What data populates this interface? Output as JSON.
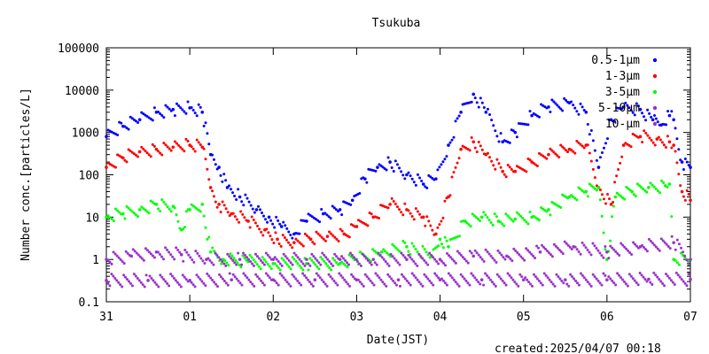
{
  "chart_data": {
    "type": "scatter",
    "title": "Tsukuba",
    "xlabel": "Date(JST)",
    "ylabel": "Number conc.[particles/L]",
    "footer": "created:2025/04/07 00:18",
    "y_scale": "log",
    "ylim": [
      0.1,
      100000
    ],
    "xlim": [
      0,
      7
    ],
    "x_tick_labels": [
      "31",
      "01",
      "02",
      "03",
      "04",
      "05",
      "06",
      "07"
    ],
    "y_tick_labels": [
      "0.1",
      "1",
      "10",
      "100",
      "1000",
      "10000",
      "100000"
    ],
    "legend_position": "top-right",
    "grid": false,
    "series": [
      {
        "name": "0.5-1μm",
        "color": "#0000ff",
        "x": [
          0.0,
          0.2,
          0.4,
          0.6,
          0.8,
          1.0,
          1.15,
          1.25,
          1.35,
          1.45,
          1.6,
          1.8,
          1.95,
          2.1,
          2.25,
          2.4,
          2.6,
          2.8,
          2.95,
          3.1,
          3.25,
          3.4,
          3.6,
          3.8,
          3.95,
          4.1,
          4.25,
          4.4,
          4.55,
          4.75,
          4.9,
          5.1,
          5.3,
          5.55,
          5.75,
          5.9,
          6.05,
          6.2,
          6.4,
          6.55,
          6.65,
          6.75,
          6.8,
          6.9,
          7.0
        ],
        "y": [
          800,
          1400,
          2000,
          3000,
          3500,
          3800,
          3000,
          300,
          150,
          50,
          30,
          15,
          10,
          6,
          4,
          8,
          12,
          15,
          25,
          80,
          150,
          200,
          100,
          60,
          80,
          500,
          3000,
          8000,
          3000,
          600,
          1000,
          2500,
          4000,
          5000,
          3000,
          150,
          2000,
          4000,
          3500,
          2000,
          1500,
          2500,
          2000,
          200,
          150
        ]
      },
      {
        "name": "1-3μm",
        "color": "#ff0000",
        "x": [
          0.0,
          0.2,
          0.4,
          0.6,
          0.8,
          1.0,
          1.15,
          1.25,
          1.35,
          1.5,
          1.7,
          1.9,
          2.05,
          2.25,
          2.45,
          2.65,
          2.85,
          3.0,
          3.2,
          3.4,
          3.6,
          3.8,
          3.95,
          4.1,
          4.25,
          4.4,
          4.55,
          4.75,
          4.9,
          5.1,
          5.3,
          5.55,
          5.75,
          5.9,
          6.05,
          6.2,
          6.4,
          6.6,
          6.75,
          6.8,
          6.9,
          7.0
        ],
        "y": [
          150,
          250,
          350,
          400,
          450,
          500,
          450,
          50,
          20,
          12,
          8,
          5,
          3,
          2.5,
          3,
          3.5,
          4,
          6,
          10,
          20,
          15,
          10,
          4,
          30,
          400,
          600,
          300,
          120,
          120,
          200,
          300,
          400,
          500,
          50,
          20,
          500,
          800,
          700,
          600,
          500,
          40,
          25
        ]
      },
      {
        "name": "3-5μm",
        "color": "#00ff00",
        "x": [
          0.0,
          0.2,
          0.4,
          0.6,
          0.8,
          0.9,
          1.0,
          1.15,
          1.25,
          1.4,
          1.7,
          2.0,
          2.4,
          2.8,
          3.0,
          3.3,
          3.6,
          3.9,
          4.0,
          4.1,
          4.3,
          4.5,
          4.7,
          4.9,
          5.1,
          5.3,
          5.55,
          5.75,
          5.9,
          6.0,
          6.1,
          6.3,
          6.5,
          6.7,
          6.75,
          6.8,
          7.0
        ],
        "y": [
          10,
          12,
          15,
          20,
          18,
          5,
          15,
          20,
          1.5,
          1,
          0.9,
          0.8,
          0.8,
          0.8,
          1,
          1.5,
          2,
          1.2,
          3,
          2,
          8,
          10,
          8,
          9,
          10,
          15,
          30,
          40,
          50,
          1,
          30,
          40,
          50,
          55,
          60,
          1,
          1
        ]
      },
      {
        "name": "5-10μm",
        "color": "#9933cc",
        "x": [
          0.0,
          0.3,
          0.6,
          0.9,
          1.2,
          1.6,
          2.0,
          2.4,
          2.8,
          3.2,
          3.6,
          4.0,
          4.4,
          4.8,
          5.2,
          5.6,
          6.0,
          6.4,
          6.8,
          7.0
        ],
        "y": [
          1.0,
          1.2,
          1.5,
          1.3,
          1.0,
          1.0,
          1.0,
          1.0,
          1.0,
          1.0,
          1.0,
          1.0,
          1.2,
          1.2,
          1.5,
          2.0,
          1.5,
          2.0,
          2.5,
          1.0
        ]
      },
      {
        "name": "10-μm",
        "color": "#9933cc",
        "x": [
          0.0,
          0.5,
          1.0,
          1.5,
          2.0,
          2.5,
          3.0,
          3.5,
          4.0,
          4.5,
          5.0,
          5.5,
          6.0,
          6.5,
          7.0
        ],
        "y": [
          0.32,
          0.32,
          0.32,
          0.33,
          0.33,
          0.33,
          0.33,
          0.33,
          0.33,
          0.33,
          0.33,
          0.33,
          0.33,
          0.34,
          0.34
        ]
      }
    ]
  }
}
